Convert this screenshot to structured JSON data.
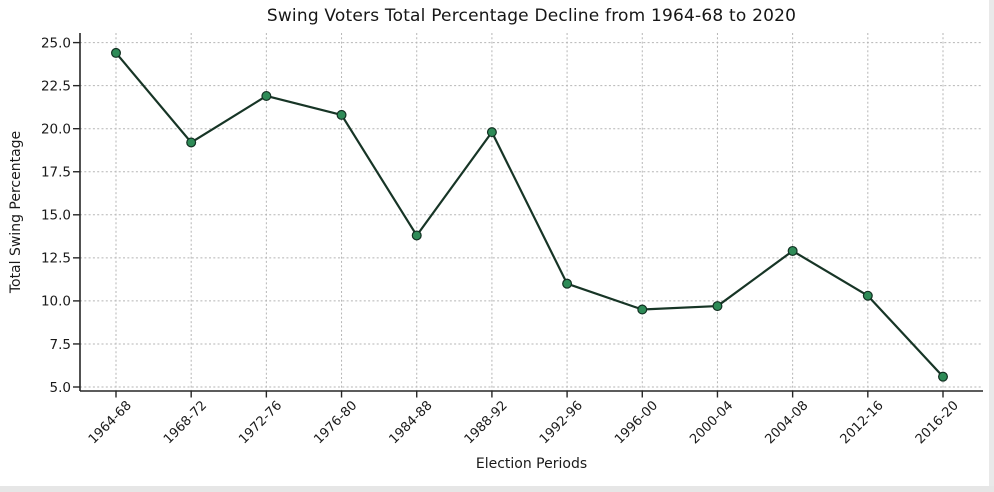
{
  "figure": {
    "background": "#ffffff",
    "edge_color": "#e6e6e6"
  },
  "chart_data": {
    "type": "line",
    "title": "Swing Voters Total Percentage Decline from 1964-68 to 2020",
    "xlabel": "Election Periods",
    "ylabel": "Total Swing Percentage",
    "categories": [
      "1964-68",
      "1968-72",
      "1972-76",
      "1976-80",
      "1984-88",
      "1988-92",
      "1992-96",
      "1996-00",
      "2000-04",
      "2004-08",
      "2012-16",
      "2016-20"
    ],
    "series": [
      {
        "name": "Total Swing Percentage",
        "values": [
          24.4,
          19.2,
          21.9,
          20.8,
          13.8,
          19.8,
          11.0,
          9.5,
          9.7,
          12.9,
          10.3,
          5.6
        ]
      }
    ],
    "yticks": [
      25.0,
      22.5,
      20.0,
      17.5,
      15.0,
      12.5,
      10.0,
      7.5,
      5.0
    ],
    "ytick_labels": [
      "25.0",
      "22.5",
      "20.0",
      "17.5",
      "15.0",
      "12.5",
      "10.0",
      "7.5",
      "5.0"
    ],
    "ylim": [
      4.8,
      25.6
    ],
    "grid": true,
    "grid_style": "dashed",
    "legend": "none",
    "x_tick_rotation_deg": 45,
    "colors": {
      "line": "#173526",
      "marker_fill": "#2e8b57",
      "marker_edge": "#123022",
      "grid": "#b5b5b5",
      "spine": "#262626",
      "text": "#1a1a1a"
    }
  }
}
